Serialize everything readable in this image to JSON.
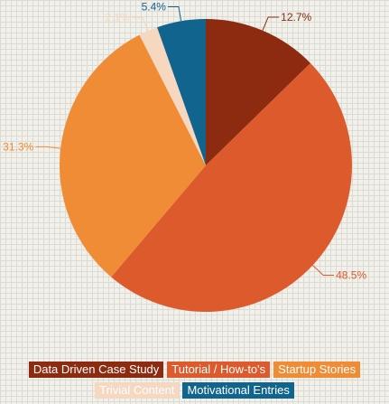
{
  "chart_data": {
    "type": "pie",
    "title": "",
    "slices": [
      {
        "label": "Data Driven Case Study",
        "value": 12.7,
        "display": "12.7%",
        "color": "#8c2b10"
      },
      {
        "label": "Tutorial / How-to's",
        "value": 48.5,
        "display": "48.5%",
        "color": "#dc5a2b"
      },
      {
        "label": "Startup Stories",
        "value": 31.3,
        "display": "31.3%",
        "color": "#f08c36"
      },
      {
        "label": "Trivial Content",
        "value": 2.1,
        "display": "2.1%",
        "color": "#f6d7bf"
      },
      {
        "label": "Motivational Entries",
        "value": 5.4,
        "display": "5.4%",
        "color": "#11648e"
      }
    ],
    "legend": "bottom"
  }
}
